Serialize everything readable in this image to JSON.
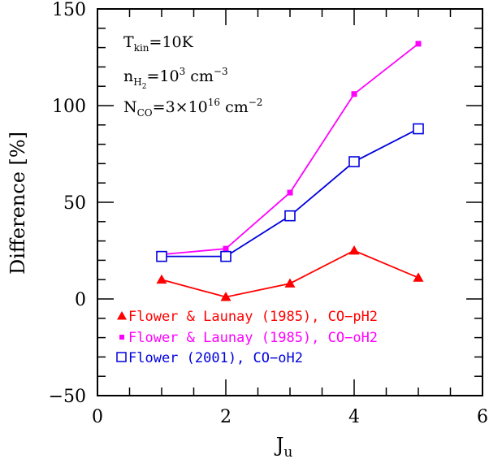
{
  "chart_data": {
    "type": "line",
    "xlabel": "J",
    "xlabel_sub": "u",
    "ylabel": "Difference [%]",
    "xlim": [
      0,
      6
    ],
    "ylim": [
      -50,
      150
    ],
    "x_ticks": [
      "0",
      "2",
      "4",
      "6"
    ],
    "y_ticks": [
      "−50",
      "0",
      "50",
      "100",
      "150"
    ],
    "x_tick_values": [
      0,
      2,
      4,
      6
    ],
    "y_tick_values": [
      -50,
      0,
      50,
      100,
      150
    ],
    "grid": false,
    "legend_position": "bottom-left",
    "annotations": {
      "line1": {
        "main": "T",
        "sub": "kin",
        "rest": "=10K"
      },
      "line2": {
        "main": "n",
        "sub": "H",
        "subsub": "2",
        "rest": "=10",
        "sup": "3",
        "tail": " cm",
        "tail_sup": "−3"
      },
      "line3": {
        "main": "N",
        "sub": "CO",
        "rest": "=3×10",
        "sup": "16",
        "tail": " cm",
        "tail_sup": "−2"
      }
    },
    "series": [
      {
        "name": "Flower & Launay (1985), CO−pH2",
        "color": "#ff0000",
        "marker": "filled-triangle",
        "x": [
          1,
          2,
          3,
          4,
          5
        ],
        "y": [
          10,
          1,
          8,
          25,
          11
        ]
      },
      {
        "name": "Flower & Launay (1985), CO−oH2",
        "color": "#ff00ff",
        "marker": "filled-square-small",
        "x": [
          1,
          2,
          3,
          4,
          5
        ],
        "y": [
          23,
          26,
          55,
          106,
          132
        ]
      },
      {
        "name": "Flower (2001), CO−oH2",
        "color": "#0000dd",
        "marker": "open-square",
        "x": [
          1,
          2,
          3,
          4,
          5
        ],
        "y": [
          22,
          22,
          43,
          71,
          88
        ]
      }
    ]
  }
}
